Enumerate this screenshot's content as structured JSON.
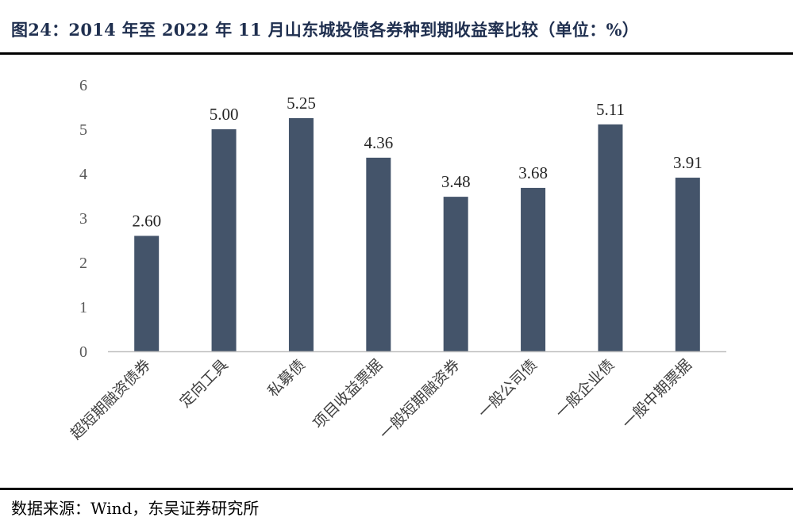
{
  "title": "图24：2014 年至 2022 年 11 月山东城投债各券种到期收益率比较（单位：%）",
  "source": "数据来源：Wind，东吴证券研究所",
  "colors": {
    "bar": "#44546a",
    "axis": "#bfbfbf",
    "title": "#1f2f4f"
  },
  "chart_data": {
    "type": "bar",
    "title": "",
    "xlabel": "",
    "ylabel": "",
    "categories": [
      "超短期融资债券",
      "定向工具",
      "私募债",
      "项目收益票据",
      "一般短期融资券",
      "一般公司债",
      "一般企业债",
      "一般中期票据"
    ],
    "values": [
      2.6,
      5.0,
      5.25,
      4.36,
      3.48,
      3.68,
      5.11,
      3.91
    ],
    "value_labels": [
      "2.60",
      "5.00",
      "5.25",
      "4.36",
      "3.48",
      "3.68",
      "5.11",
      "3.91"
    ],
    "yticks": [
      "0",
      "1",
      "2",
      "3",
      "4",
      "5",
      "6"
    ],
    "ylim": [
      0,
      6
    ],
    "grid": false,
    "legend": "none"
  }
}
